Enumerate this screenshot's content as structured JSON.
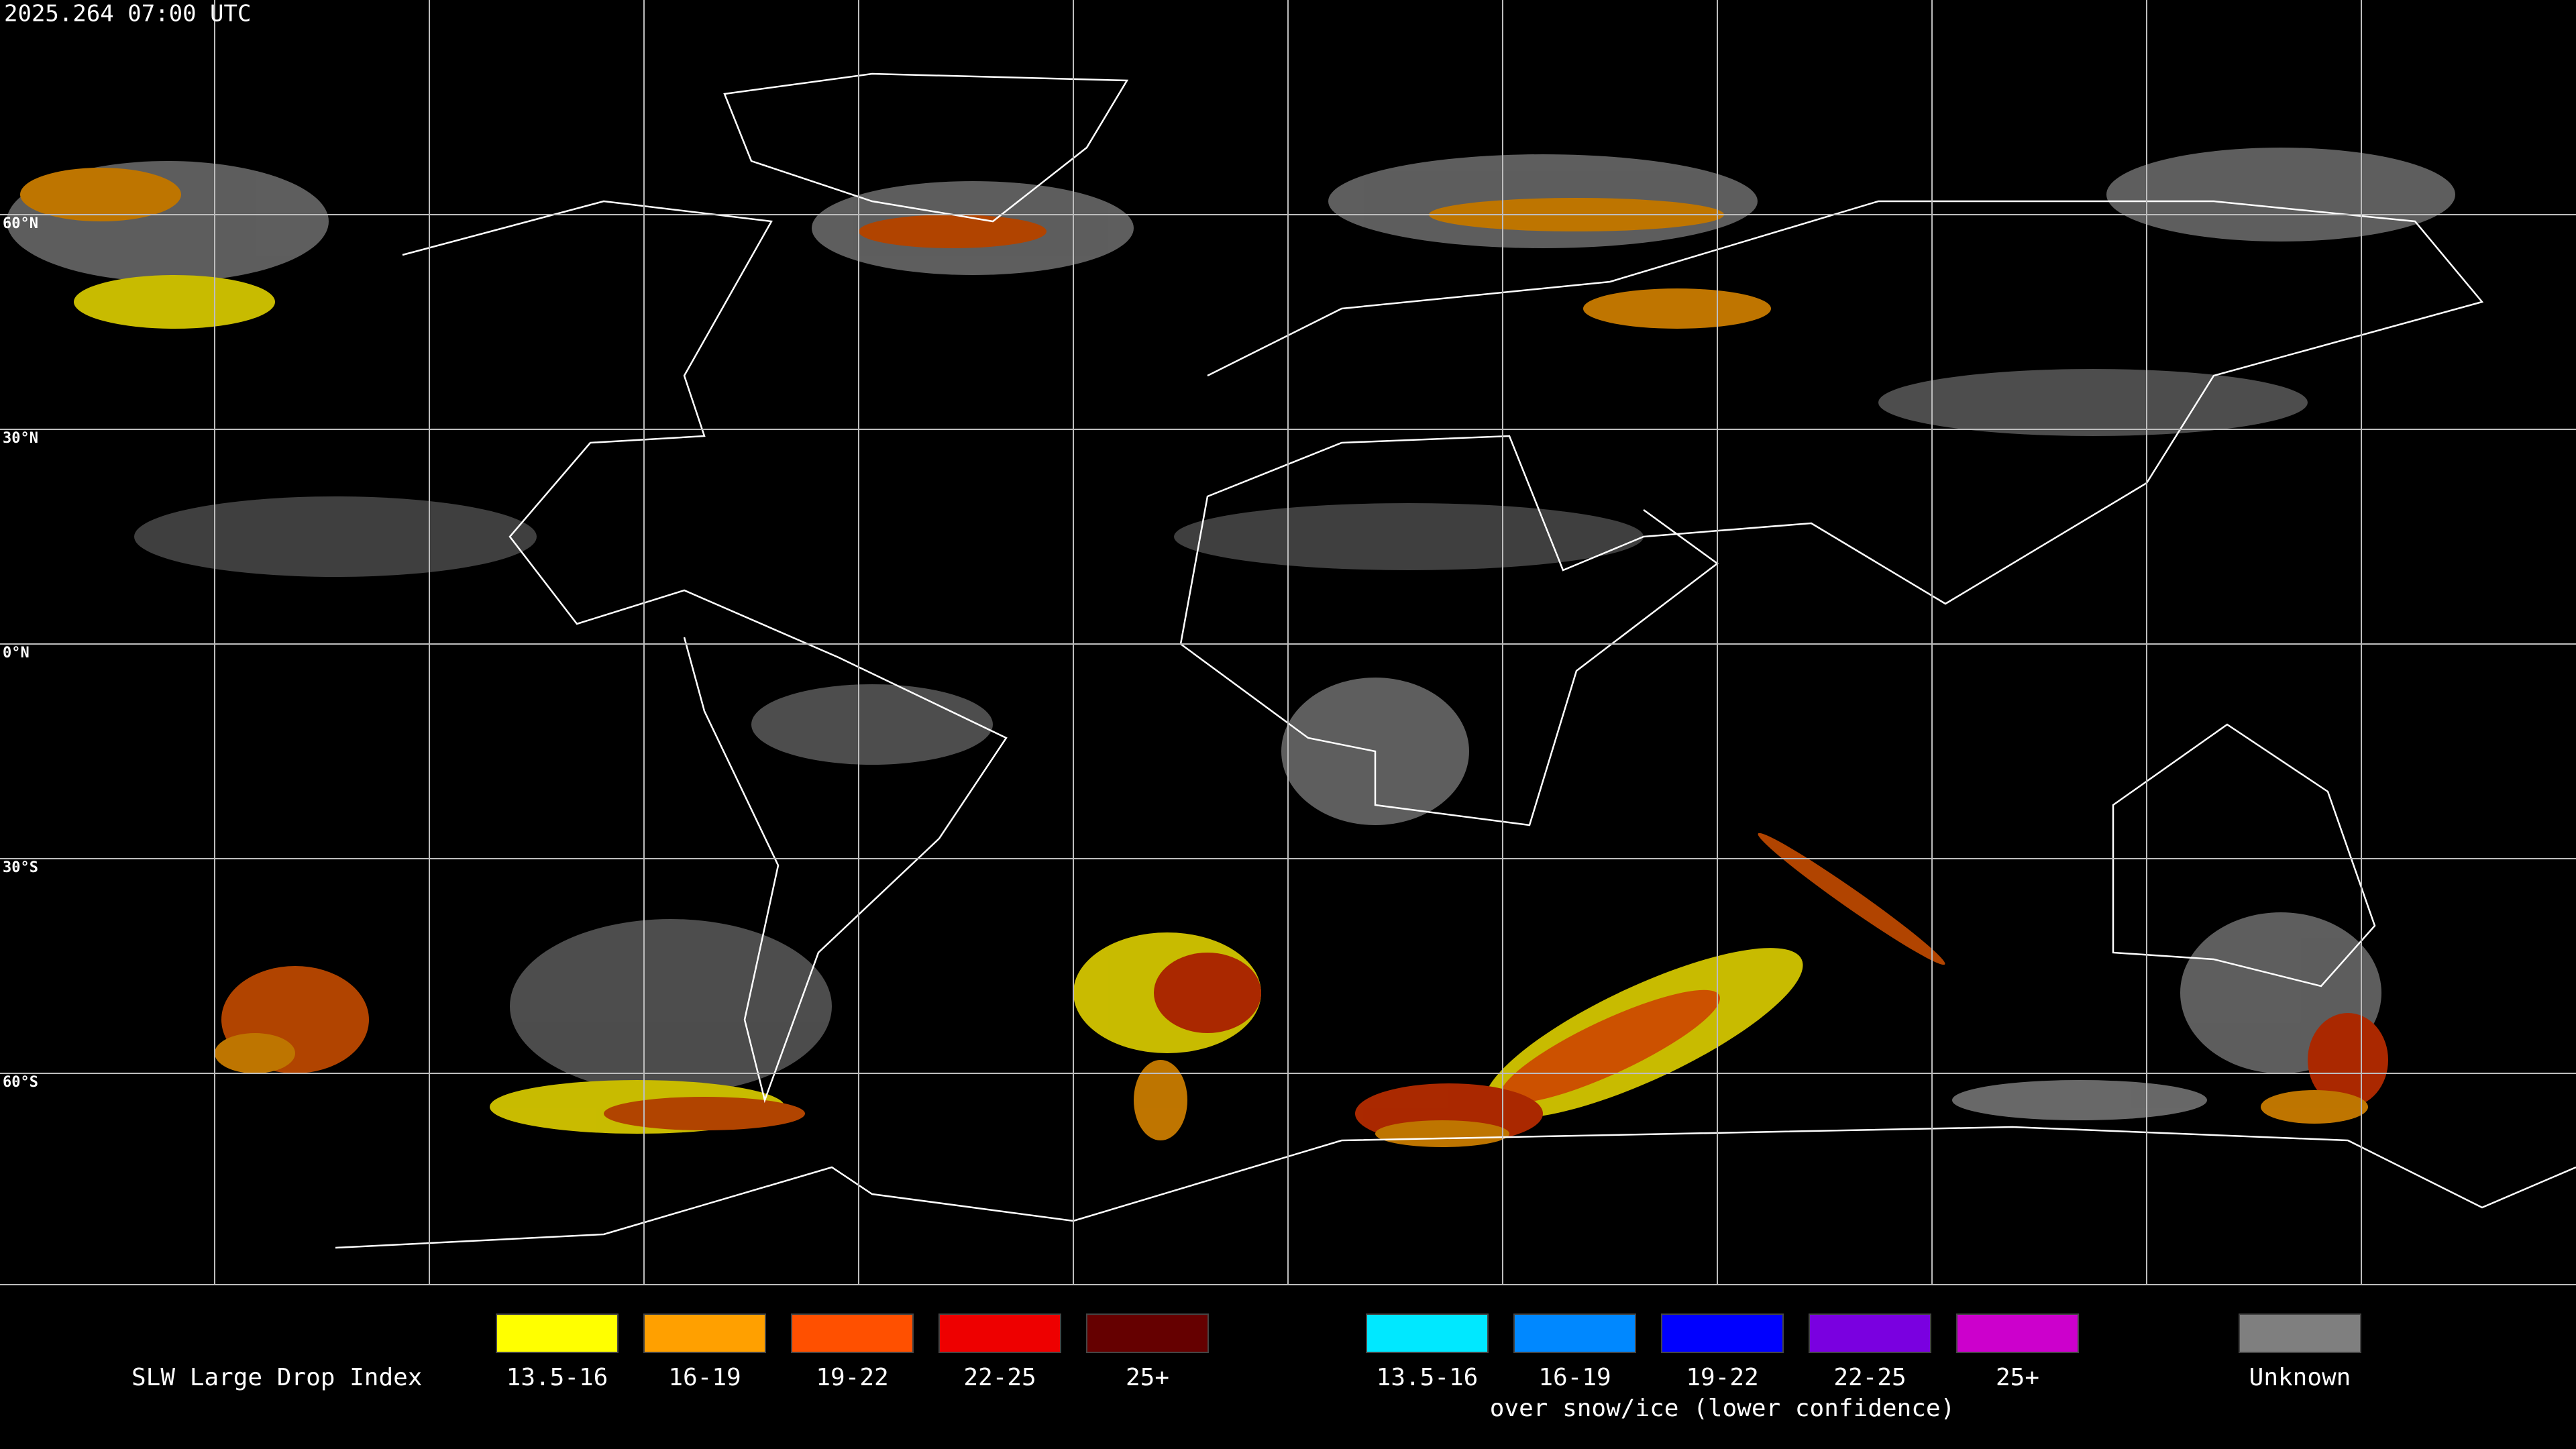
{
  "header": {
    "title": "2025.264 07:00 UTC"
  },
  "map": {
    "latitude_labels": [
      "60°N",
      "30°N",
      "0°N",
      "30°S",
      "60°S"
    ]
  },
  "legend": {
    "title": "SLW Large Drop Index",
    "groups": [
      {
        "items": [
          {
            "label": "13.5-16",
            "color": "#ffff00"
          },
          {
            "label": "16-19",
            "color": "#ffa000"
          },
          {
            "label": "19-22",
            "color": "#ff5000"
          },
          {
            "label": "22-25",
            "color": "#ee0000"
          },
          {
            "label": "25+",
            "color": "#650000"
          }
        ]
      },
      {
        "items": [
          {
            "label": "13.5-16",
            "color": "#00e8ff"
          },
          {
            "label": "16-19",
            "color": "#0088ff"
          },
          {
            "label": "19-22",
            "color": "#0000ff"
          },
          {
            "label": "22-25",
            "color": "#7a00e0"
          },
          {
            "label": "25+",
            "color": "#cc00cc"
          }
        ],
        "caption": "over snow/ice (lower confidence)"
      },
      {
        "items": [
          {
            "label": "Unknown",
            "color": "#7f7f7f"
          }
        ]
      }
    ]
  }
}
